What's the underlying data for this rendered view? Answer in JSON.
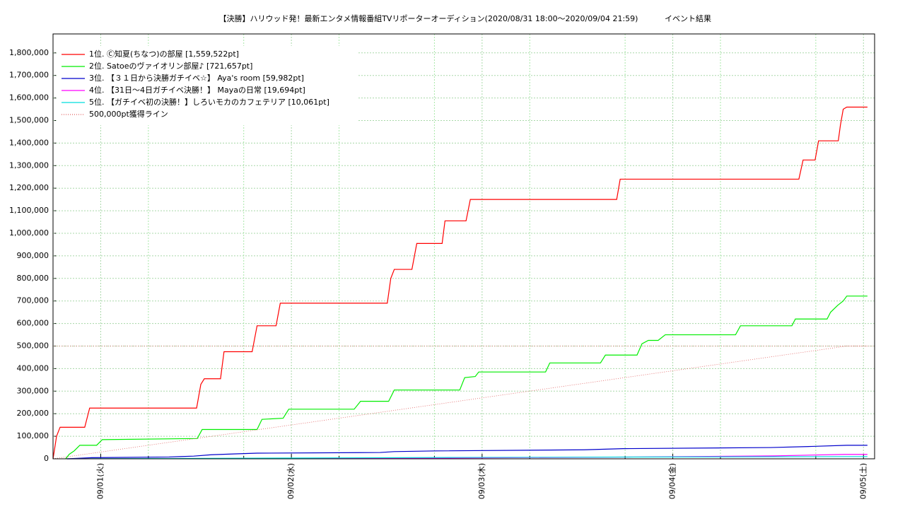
{
  "chart_data": {
    "type": "line",
    "title": "【決勝】ハリウッド発！最新エンタメ情報番組TVリポーターオーディション(2020/08/31 18:00〜2020/09/04 21:59)",
    "subtitle": "イベント結果",
    "xlim": [
      0,
      103.4
    ],
    "xticks": [
      {
        "value": 6,
        "label": "09/01(火)"
      },
      {
        "value": 30,
        "label": "09/02(水)"
      },
      {
        "value": 54,
        "label": "09/03(木)"
      },
      {
        "value": 78,
        "label": "09/04(金)"
      },
      {
        "value": 102,
        "label": "09/05(土)"
      }
    ],
    "xminor": [
      12,
      24,
      36,
      48,
      60,
      72,
      84,
      96
    ],
    "ylim": [
      0,
      1884000
    ],
    "yticks": [
      0,
      {
        "value": 100000,
        "label": "100,000"
      },
      {
        "value": 200000,
        "label": "200,000"
      },
      {
        "value": 300000,
        "label": "300,000"
      },
      {
        "value": 400000,
        "label": "400,000"
      },
      {
        "value": 500000,
        "label": "500,000"
      },
      {
        "value": 600000,
        "label": "600,000"
      },
      {
        "value": 700000,
        "label": "700,000"
      },
      {
        "value": 800000,
        "label": "800,000"
      },
      {
        "value": 900000,
        "label": "900,000"
      },
      {
        "value": 1000000,
        "label": "1,000,000"
      },
      {
        "value": 1100000,
        "label": "1,100,000"
      },
      {
        "value": 1200000,
        "label": "1,200,000"
      },
      {
        "value": 1300000,
        "label": "1,300,000"
      },
      {
        "value": 1400000,
        "label": "1,400,000"
      },
      {
        "value": 1500000,
        "label": "1,500,000"
      },
      {
        "value": 1600000,
        "label": "1,600,000"
      },
      {
        "value": 1700000,
        "label": "1,700,000"
      },
      {
        "value": 1800000,
        "label": "1,800,000"
      }
    ],
    "grid": true,
    "hline": 500000,
    "legend": "upper-left",
    "series": [
      {
        "name": "1位. Ⓒ知夏(ちなつ)の部屋 [1,559,522pt]",
        "color": "#ff0000",
        "x": [
          0,
          0.27,
          0.44,
          0.89,
          3.99,
          4.61,
          18.07,
          18.6,
          19.04,
          21.08,
          21.52,
          25.06,
          25.68,
          28.07,
          28.6,
          42.07,
          42.51,
          42.95,
          45.17,
          45.78,
          48.97,
          49.33,
          51.98,
          52.52,
          70.94,
          71.38,
          93.87,
          94.4,
          95.91,
          96.35,
          98.83,
          99.1,
          99.45,
          99.9,
          102.5
        ],
        "values": [
          0,
          60000,
          100000,
          140000,
          140000,
          225000,
          225000,
          330000,
          355000,
          355000,
          475000,
          475000,
          590000,
          590000,
          690000,
          690000,
          800000,
          840000,
          840000,
          955000,
          955000,
          1055000,
          1055000,
          1150000,
          1150000,
          1240000,
          1240000,
          1325000,
          1325000,
          1410000,
          1410000,
          1480000,
          1550000,
          1559522,
          1559522
        ]
      },
      {
        "name": "2位. Satoeのヴァイオリン部屋♪ [721,657pt]",
        "color": "#00ee00",
        "x": [
          1.59,
          2.04,
          2.66,
          3.37,
          5.49,
          6.2,
          18.15,
          18.77,
          25.68,
          26.3,
          28.96,
          29.67,
          37.9,
          38.7,
          42.24,
          42.95,
          51.19,
          51.81,
          53.14,
          53.58,
          61.99,
          62.52,
          68.9,
          69.52,
          73.5,
          74.12,
          74.92,
          76.16,
          77.05,
          85.9,
          86.52,
          92.99,
          93.43,
          97.42,
          97.86,
          98.74,
          99.45,
          99.9,
          102.5
        ],
        "values": [
          0,
          20000,
          35000,
          60000,
          60000,
          85000,
          90000,
          130000,
          130000,
          175000,
          180000,
          220000,
          220000,
          255000,
          255000,
          305000,
          305000,
          360000,
          365000,
          385000,
          385000,
          425000,
          425000,
          460000,
          460000,
          510000,
          525000,
          525000,
          550000,
          550000,
          590000,
          590000,
          620000,
          620000,
          650000,
          680000,
          700000,
          721657,
          721657
        ]
      },
      {
        "name": "3位. 【３１日から決勝ガチイベ☆】 Aya's room [59,982pt]",
        "color": "#0000cc",
        "x": [
          1.77,
          4.87,
          14.61,
          17.71,
          19.93,
          23.03,
          25.68,
          41.18,
          42.95,
          48.27,
          66.86,
          71.73,
          90.33,
          95.64,
          99.9,
          102.5
        ],
        "values": [
          0,
          5000,
          8000,
          12000,
          18000,
          22000,
          25000,
          28000,
          32000,
          35000,
          40000,
          45000,
          50000,
          55000,
          59982,
          59982
        ]
      },
      {
        "name": "4位. 【31日〜4日ガチイベ決勝！】 Mayaの日常 [19,694pt]",
        "color": "#ff00ff",
        "x": [
          1.77,
          48.27,
          73.06,
          90.77,
          99.62,
          102.5
        ],
        "values": [
          0,
          3000,
          8000,
          13000,
          19694,
          19694
        ]
      },
      {
        "name": "5位. 【ガチイベ初の決勝！】しろいモカのカフェテリア [10,061pt]",
        "color": "#00dddd",
        "x": [
          1.77,
          50.92,
          99.9,
          102.5
        ],
        "values": [
          0,
          6000,
          10061,
          10061
        ]
      },
      {
        "name": "500,000pt獲得ライン",
        "color": "#e06060",
        "dashed": true,
        "x": [
          0,
          99.9,
          102.5
        ],
        "values": [
          0,
          500000,
          500000
        ]
      }
    ]
  }
}
